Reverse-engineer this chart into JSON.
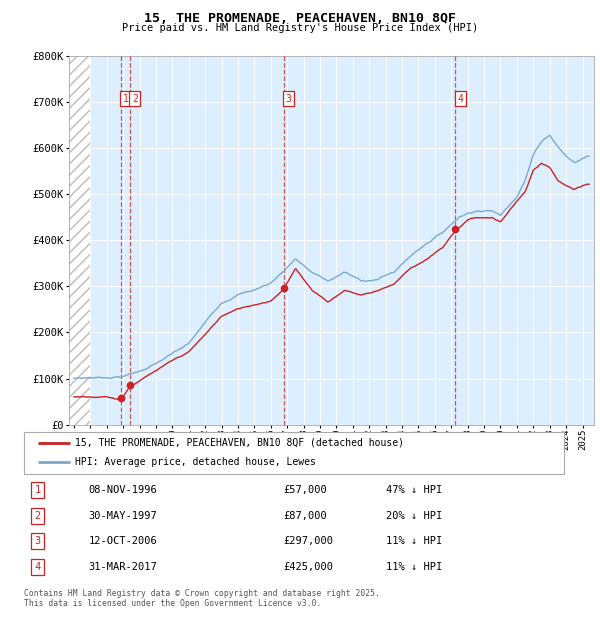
{
  "title": "15, THE PROMENADE, PEACEHAVEN, BN10 8QF",
  "subtitle": "Price paid vs. HM Land Registry's House Price Index (HPI)",
  "background_color": "#ffffff",
  "plot_bg_color": "#ddeeff",
  "ylim": [
    0,
    800000
  ],
  "yticks": [
    0,
    100000,
    200000,
    300000,
    400000,
    500000,
    600000,
    700000,
    800000
  ],
  "ytick_labels": [
    "£0",
    "£100K",
    "£200K",
    "£300K",
    "£400K",
    "£500K",
    "£600K",
    "£700K",
    "£800K"
  ],
  "xlim_start": 1993.7,
  "xlim_end": 2025.7,
  "transactions": [
    {
      "num": 1,
      "date": "08-NOV-1996",
      "year": 1996.86,
      "price": 57000,
      "pct": "47%",
      "dir": "↓"
    },
    {
      "num": 2,
      "date": "30-MAY-1997",
      "year": 1997.41,
      "price": 87000,
      "pct": "20%",
      "dir": "↓"
    },
    {
      "num": 3,
      "date": "12-OCT-2006",
      "year": 2006.78,
      "price": 297000,
      "pct": "11%",
      "dir": "↓"
    },
    {
      "num": 4,
      "date": "31-MAR-2017",
      "year": 2017.25,
      "price": 425000,
      "pct": "11%",
      "dir": "↓"
    }
  ],
  "legend_entries": [
    {
      "label": "15, THE PROMENADE, PEACEHAVEN, BN10 8QF (detached house)",
      "color": "#cc2222"
    },
    {
      "label": "HPI: Average price, detached house, Lewes",
      "color": "#7aaad0"
    }
  ],
  "footer": "Contains HM Land Registry data © Crown copyright and database right 2025.\nThis data is licensed under the Open Government Licence v3.0.",
  "red_line_color": "#cc2222",
  "blue_line_color": "#7aaad0",
  "hpi_anchors": {
    "1994.0": 100000,
    "1995.0": 102000,
    "1996.0": 103000,
    "1997.0": 107000,
    "1998.0": 118000,
    "1999.0": 135000,
    "2000.0": 155000,
    "2001.0": 175000,
    "2002.0": 220000,
    "2003.0": 265000,
    "2004.0": 285000,
    "2005.0": 295000,
    "2006.0": 310000,
    "2007.0": 345000,
    "2007.5": 365000,
    "2008.5": 335000,
    "2009.5": 315000,
    "2010.5": 335000,
    "2011.5": 315000,
    "2012.5": 320000,
    "2013.5": 335000,
    "2014.5": 370000,
    "2015.5": 400000,
    "2016.5": 425000,
    "2017.5": 460000,
    "2018.5": 475000,
    "2019.5": 475000,
    "2020.0": 465000,
    "2021.0": 510000,
    "2021.5": 545000,
    "2022.0": 600000,
    "2022.5": 630000,
    "2023.0": 645000,
    "2023.5": 620000,
    "2024.0": 600000,
    "2024.5": 585000,
    "2025.3": 600000
  },
  "prop_anchors": {
    "1994.0": 60000,
    "1995.0": 62000,
    "1996.0": 63000,
    "1996.86": 57000,
    "1997.41": 87000,
    "1998.0": 100000,
    "1999.0": 120000,
    "2000.0": 140000,
    "2001.0": 158000,
    "2002.0": 195000,
    "2003.0": 235000,
    "2004.0": 250000,
    "2005.0": 260000,
    "2006.0": 270000,
    "2006.78": 297000,
    "2007.5": 340000,
    "2008.5": 295000,
    "2009.5": 270000,
    "2010.5": 295000,
    "2011.5": 285000,
    "2012.5": 295000,
    "2013.5": 310000,
    "2014.5": 345000,
    "2015.5": 365000,
    "2016.5": 390000,
    "2017.25": 425000,
    "2018.0": 450000,
    "2018.5": 455000,
    "2019.5": 455000,
    "2020.0": 445000,
    "2021.0": 490000,
    "2021.5": 510000,
    "2022.0": 555000,
    "2022.5": 570000,
    "2023.0": 560000,
    "2023.5": 530000,
    "2024.0": 520000,
    "2024.5": 510000,
    "2025.3": 520000
  }
}
